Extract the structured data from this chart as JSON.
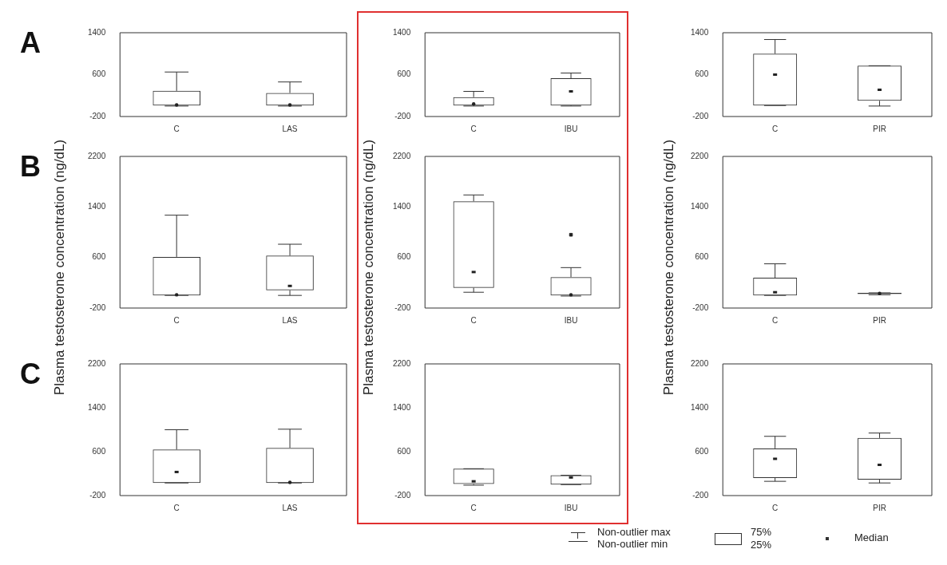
{
  "chart_data": [
    {
      "type": "box",
      "annotations": [
        "A"
      ],
      "categories": [
        "C",
        "LAS"
      ],
      "ylim": [
        -200,
        1400
      ],
      "yticks": [
        -200,
        600,
        1400
      ],
      "boxes": [
        {
          "low": 0,
          "q1": 10,
          "median": 20,
          "q3": 290,
          "high": 650
        },
        {
          "low": 0,
          "q1": 10,
          "median": 20,
          "q3": 250,
          "high": 460
        }
      ]
    },
    {
      "type": "box",
      "categories": [
        "C",
        "IBU"
      ],
      "ylim": [
        -200,
        1400
      ],
      "yticks": [
        -200,
        600,
        1400
      ],
      "boxes": [
        {
          "low": 0,
          "q1": 10,
          "median": 40,
          "q3": 170,
          "high": 280
        },
        {
          "low": 0,
          "q1": 10,
          "median": 280,
          "q3": 530,
          "high": 630
        }
      ]
    },
    {
      "type": "box",
      "categories": [
        "C",
        "PIR"
      ],
      "ylim": [
        -200,
        1400
      ],
      "yticks": [
        -200,
        600,
        1400
      ],
      "boxes": [
        {
          "low": 10,
          "q1": 10,
          "median": 600,
          "q3": 1000,
          "high": 1270
        },
        {
          "low": 0,
          "q1": 100,
          "median": 310,
          "q3": 770,
          "high": 770
        }
      ]
    },
    {
      "type": "box",
      "annotations": [
        "B"
      ],
      "ylabel": "Plasma testosterone concentration (ng/dL)",
      "categories": [
        "C",
        "LAS"
      ],
      "ylim": [
        -200,
        2200
      ],
      "yticks": [
        -200,
        600,
        1400,
        2200
      ],
      "boxes": [
        {
          "low": 0,
          "q1": 0,
          "median": 10,
          "q3": 610,
          "high": 1270
        },
        {
          "low": 0,
          "q1": 80,
          "median": 150,
          "q3": 630,
          "high": 810
        }
      ]
    },
    {
      "type": "box",
      "ylabel": "Plasma testosterone concentration (ng/dL)",
      "categories": [
        "C",
        "IBU"
      ],
      "ylim": [
        -200,
        2200
      ],
      "yticks": [
        -200,
        600,
        1400,
        2200
      ],
      "boxes": [
        {
          "low": 50,
          "q1": 120,
          "median": 370,
          "q3": 1490,
          "high": 1590
        },
        {
          "low": -10,
          "q1": 0,
          "median": 10,
          "q3": 290,
          "high": 440,
          "outliers": [
            960
          ]
        }
      ]
    },
    {
      "type": "box",
      "ylabel": "Plasma testosterone concentration (ng/dL)",
      "categories": [
        "C",
        "PIR"
      ],
      "ylim": [
        -200,
        2200
      ],
      "yticks": [
        -200,
        600,
        1400,
        2200
      ],
      "boxes": [
        {
          "low": 0,
          "q1": 0,
          "median": 50,
          "q3": 280,
          "high": 500
        },
        {
          "low": 10,
          "q1": 20,
          "median": 30,
          "q3": 40,
          "high": 40
        }
      ]
    },
    {
      "type": "box",
      "annotations": [
        "C"
      ],
      "categories": [
        "C",
        "LAS"
      ],
      "ylim": [
        -200,
        2200
      ],
      "yticks": [
        -200,
        600,
        1400,
        2200
      ],
      "boxes": [
        {
          "low": 30,
          "q1": 30,
          "median": 230,
          "q3": 640,
          "high": 1000
        },
        {
          "low": 30,
          "q1": 30,
          "median": 40,
          "q3": 670,
          "high": 1010
        }
      ]
    },
    {
      "type": "box",
      "categories": [
        "C",
        "IBU"
      ],
      "ylim": [
        -200,
        2200
      ],
      "yticks": [
        -200,
        600,
        1400,
        2200
      ],
      "boxes": [
        {
          "low": -10,
          "q1": 10,
          "median": 60,
          "q3": 290,
          "high": 290
        },
        {
          "low": 0,
          "q1": 0,
          "median": 130,
          "q3": 170,
          "high": 170
        }
      ]
    },
    {
      "type": "box",
      "categories": [
        "C",
        "PIR"
      ],
      "ylim": [
        -200,
        2200
      ],
      "yticks": [
        -200,
        600,
        1400,
        2200
      ],
      "boxes": [
        {
          "low": 60,
          "q1": 120,
          "median": 470,
          "q3": 660,
          "high": 880
        },
        {
          "low": 30,
          "q1": 90,
          "median": 360,
          "q3": 850,
          "high": 940
        }
      ]
    },
    {
      "type": "other",
      "annotations": [
        "Non-outlier max",
        "Non-outlier min",
        "75%",
        "25%",
        "Median"
      ]
    }
  ]
}
